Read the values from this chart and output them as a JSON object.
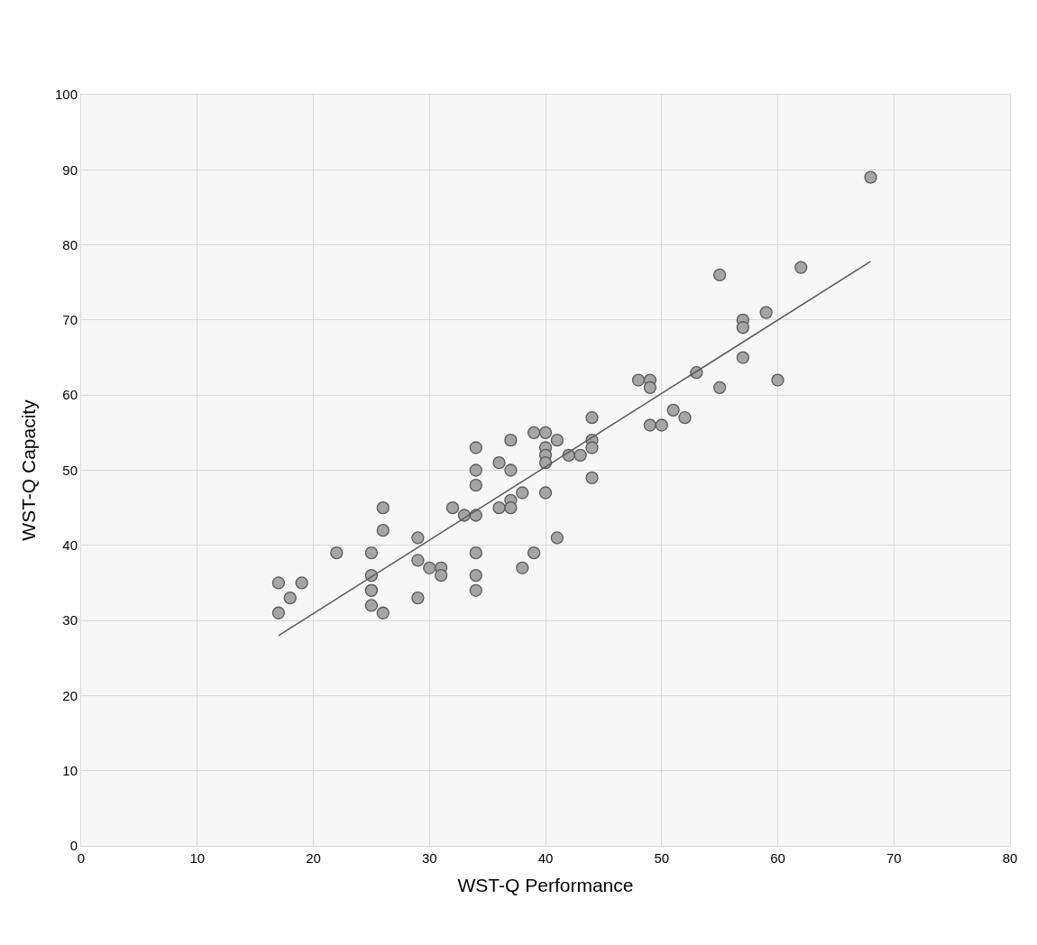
{
  "chart_data": {
    "type": "scatter",
    "xlabel": "WST-Q Performance",
    "ylabel": "WST-Q Capacity",
    "xlim": [
      0,
      80
    ],
    "ylim": [
      0,
      100
    ],
    "xticks": [
      0,
      10,
      20,
      30,
      40,
      50,
      60,
      70,
      80
    ],
    "yticks": [
      0,
      10,
      20,
      30,
      40,
      50,
      60,
      70,
      80,
      90,
      100
    ],
    "grid": true,
    "series": [
      {
        "marker": "circle",
        "color": "#a5a5a5",
        "x": [
          17,
          17,
          18,
          19,
          22,
          25,
          25,
          25,
          25,
          25,
          26,
          26,
          26,
          29,
          29,
          29,
          30,
          31,
          31,
          32,
          33,
          34,
          34,
          34,
          34,
          34,
          34,
          34,
          36,
          36,
          37,
          37,
          37,
          37,
          38,
          38,
          39,
          39,
          40,
          40,
          40,
          40,
          40,
          41,
          41,
          42,
          43,
          44,
          44,
          44,
          44,
          48,
          49,
          49,
          49,
          50,
          51,
          52,
          53,
          55,
          55,
          57,
          57,
          57,
          59,
          60,
          62,
          68
        ],
        "values": [
          35,
          31,
          33,
          35,
          39,
          39,
          36,
          34,
          34,
          32,
          45,
          42,
          31,
          41,
          38,
          33,
          37,
          37,
          36,
          45,
          44,
          53,
          50,
          48,
          44,
          39,
          36,
          34,
          51,
          45,
          54,
          50,
          46,
          45,
          47,
          37,
          55,
          39,
          55,
          53,
          52,
          51,
          47,
          54,
          41,
          52,
          52,
          57,
          54,
          53,
          49,
          62,
          62,
          61,
          56,
          56,
          58,
          57,
          63,
          76,
          61,
          70,
          69,
          65,
          71,
          62,
          77,
          89
        ]
      },
      {
        "type": "line",
        "marker": "none",
        "color": "#595959",
        "x": [
          17,
          68
        ],
        "values": [
          28,
          77.8
        ]
      }
    ]
  }
}
